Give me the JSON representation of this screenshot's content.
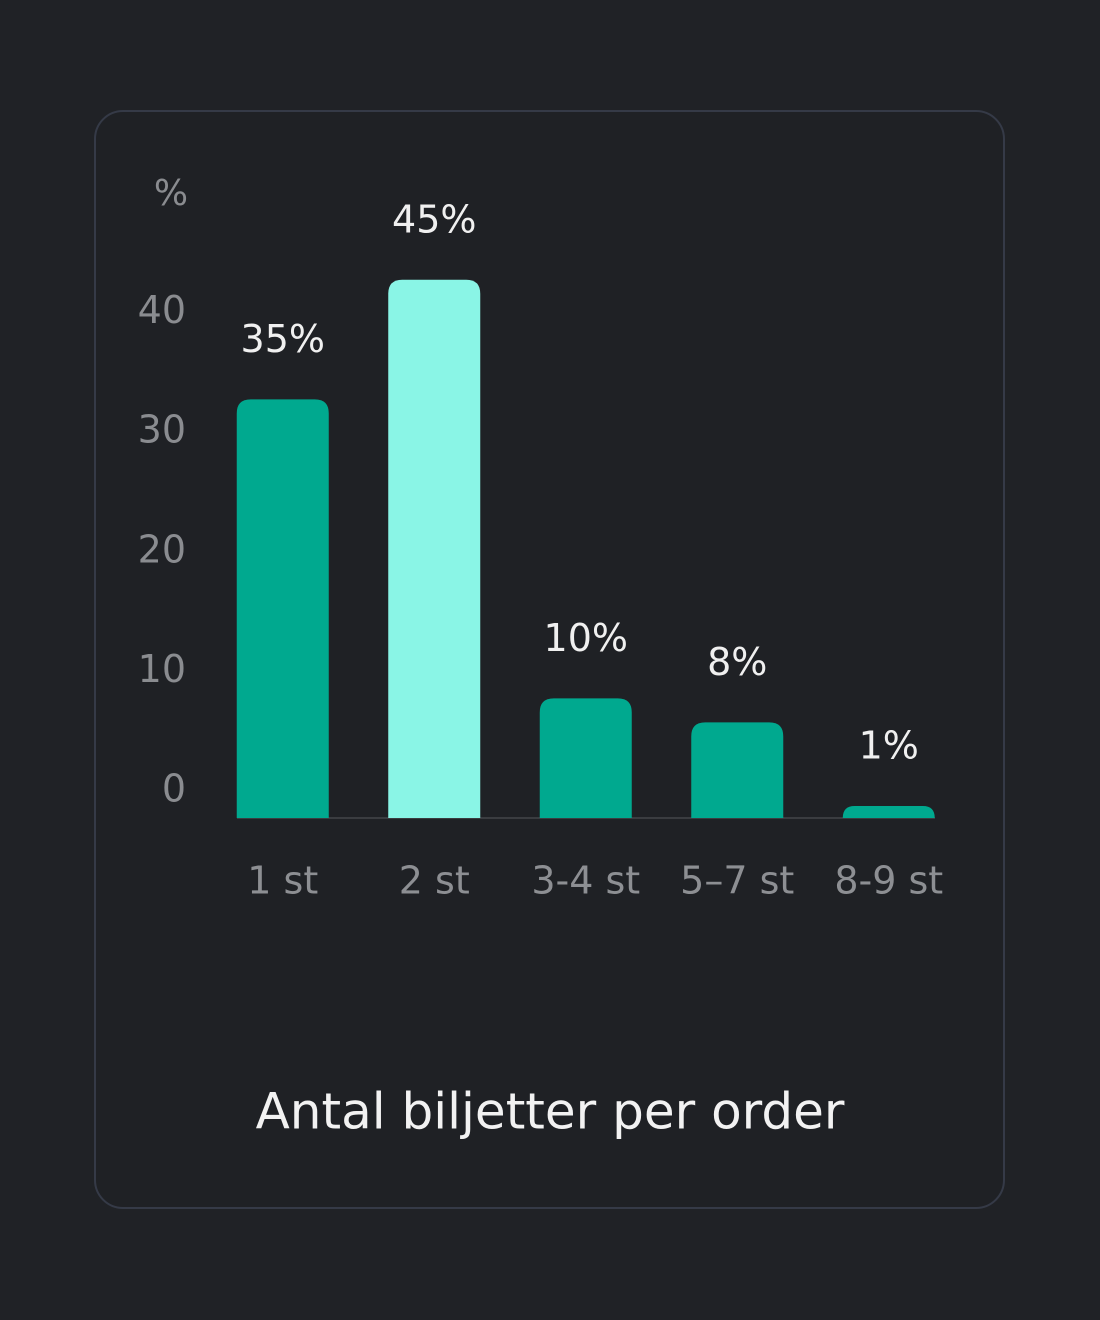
{
  "chart_data": {
    "type": "bar",
    "title": "Antal biljetter per order",
    "y_label": "%",
    "categories": [
      "1 st",
      "2 st",
      "3-4 st",
      "5–7 st",
      "8-9 st"
    ],
    "values": [
      35,
      45,
      10,
      8,
      1
    ],
    "value_labels": [
      "35%",
      "45%",
      "10%",
      "8%",
      "1%"
    ],
    "colors": [
      "#00a98f",
      "#8af5e6",
      "#00a98f",
      "#00a98f",
      "#00a98f"
    ],
    "ylim": [
      0,
      50
    ],
    "yticks": [
      0,
      10,
      20,
      30,
      40
    ],
    "grid": false
  }
}
